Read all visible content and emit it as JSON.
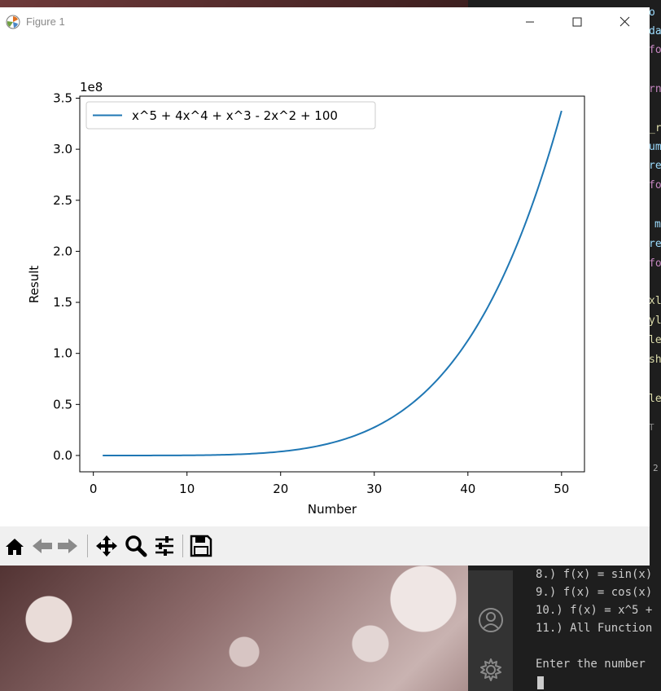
{
  "window": {
    "title": "Figure 1",
    "minimize_icon": "minimize-icon",
    "maximize_icon": "maximize-icon",
    "close_icon": "close-icon"
  },
  "chart_data": {
    "type": "line",
    "title": "",
    "xlabel": "Number",
    "ylabel": "Result",
    "offset_label": "1e8",
    "xlim": [
      -1.45,
      52.45
    ],
    "ylim": [
      -0.16,
      3.52
    ],
    "y_scale_factor": 100000000,
    "xticks": [
      0,
      10,
      20,
      30,
      40,
      50
    ],
    "yticks": [
      0.0,
      0.5,
      1.0,
      1.5,
      2.0,
      2.5,
      3.0,
      3.5
    ],
    "ytick_labels": [
      "0.0",
      "0.5",
      "1.0",
      "1.5",
      "2.0",
      "2.5",
      "3.0",
      "3.5"
    ],
    "grid": false,
    "legend_position": "top-left",
    "series": [
      {
        "name": "x^5 + 4x^4 + x^3 - 2x^2 + 100",
        "color": "#1f77b4",
        "x": [
          1,
          50
        ],
        "function": "x^5 + 4x^4 + x^3 - 2x^2 + 100"
      }
    ]
  },
  "toolbar": {
    "buttons": [
      "home-icon",
      "back-icon",
      "forward-icon",
      "pan-icon",
      "zoom-icon",
      "configure-subplots-icon",
      "save-icon"
    ]
  },
  "terminal": {
    "lines": [
      "8.) f(x) = sin(x)",
      "9.) f(x) = cos(x)",
      "10.) f(x) = x^5 +",
      "11.) All Function",
      "",
      "Enter the number "
    ]
  },
  "editor_fragments": [
    "o",
    "da",
    "fo",
    "rn",
    "_r",
    "um",
    "re",
    "fo",
    "m",
    "re",
    "fo",
    "xl",
    "yl",
    "le",
    "sh",
    "le",
    "T",
    "2"
  ]
}
